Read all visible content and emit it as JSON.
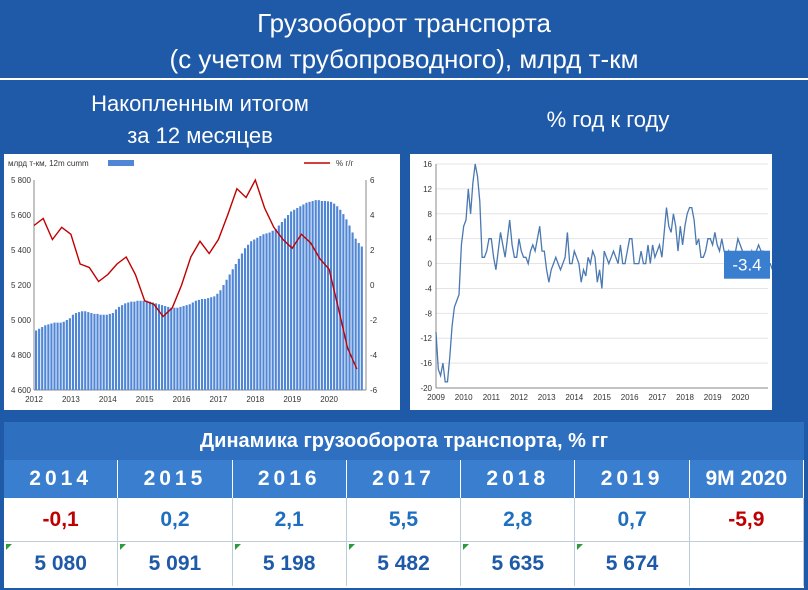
{
  "header": {
    "title_line1": "Грузооборот транспорта",
    "title_line2": "(с учетом трубопроводного), млрд т-км"
  },
  "left_panel": {
    "caption_line1": "Накопленным итогом",
    "caption_line2": "за 12 месяцев"
  },
  "right_panel": {
    "caption": "% год к году"
  },
  "chart_data": [
    {
      "type": "bar",
      "legend_bar": "млрд т-км, 12m cumm",
      "legend_line": "% г/г",
      "legend_placement": "top",
      "y_left_ticks": [
        "4 600",
        "4 800",
        "5 000",
        "5 200",
        "5 400",
        "5 600",
        "5 800"
      ],
      "y_right_ticks": [
        "-6",
        "-4",
        "-2",
        "0",
        "2",
        "4",
        "6"
      ],
      "x_ticks": [
        "2012",
        "2013",
        "2014",
        "2015",
        "2016",
        "2017",
        "2018",
        "2019",
        "2020"
      ],
      "ylim_left": [
        4600,
        5800
      ],
      "ylim_right": [
        -6,
        6
      ],
      "bar_start": 2012.0,
      "bar_step": 0.0833,
      "bar_values": [
        4940,
        4950,
        4960,
        4970,
        4975,
        4980,
        4985,
        4985,
        4985,
        4990,
        5000,
        5010,
        5030,
        5040,
        5045,
        5050,
        5050,
        5045,
        5040,
        5035,
        5035,
        5030,
        5030,
        5030,
        5035,
        5040,
        5060,
        5075,
        5085,
        5095,
        5100,
        5105,
        5105,
        5110,
        5110,
        5110,
        5110,
        5105,
        5100,
        5095,
        5090,
        5085,
        5080,
        5075,
        5070,
        5070,
        5070,
        5075,
        5080,
        5085,
        5090,
        5100,
        5110,
        5115,
        5120,
        5120,
        5125,
        5130,
        5135,
        5150,
        5170,
        5200,
        5230,
        5260,
        5290,
        5320,
        5350,
        5380,
        5410,
        5430,
        5450,
        5460,
        5470,
        5480,
        5490,
        5495,
        5500,
        5510,
        5520,
        5540,
        5560,
        5580,
        5600,
        5620,
        5630,
        5640,
        5650,
        5660,
        5670,
        5675,
        5680,
        5685,
        5685,
        5680,
        5680,
        5678,
        5675,
        5665,
        5650,
        5630,
        5605,
        5575,
        5540,
        5500,
        5465,
        5440,
        5420
      ],
      "line_x": [
        2012.0,
        2012.25,
        2012.5,
        2012.75,
        2013.0,
        2013.25,
        2013.5,
        2013.75,
        2014.0,
        2014.25,
        2014.5,
        2014.75,
        2015.0,
        2015.25,
        2015.5,
        2015.75,
        2016.0,
        2016.25,
        2016.5,
        2016.75,
        2017.0,
        2017.25,
        2017.5,
        2017.75,
        2018.0,
        2018.25,
        2018.5,
        2018.75,
        2019.0,
        2019.25,
        2019.5,
        2019.75,
        2020.0,
        2020.25,
        2020.5,
        2020.75
      ],
      "line_values": [
        3.4,
        3.8,
        2.6,
        3.3,
        2.9,
        1.2,
        1.0,
        0.2,
        0.6,
        1.2,
        1.6,
        0.6,
        -0.9,
        -1.1,
        -1.8,
        -1.3,
        0.0,
        1.6,
        2.5,
        1.8,
        2.6,
        4.0,
        5.5,
        5.0,
        6.0,
        4.4,
        3.3,
        2.6,
        2.1,
        2.9,
        2.4,
        1.5,
        0.9,
        -1.3,
        -3.6,
        -4.8
      ]
    },
    {
      "type": "line",
      "y_ticks": [
        "-20",
        "-16",
        "-12",
        "-8",
        "-4",
        "0",
        "4",
        "8",
        "12",
        "16"
      ],
      "x_ticks": [
        "2009",
        "2010",
        "2011",
        "2012",
        "2013",
        "2014",
        "2015",
        "2016",
        "2017",
        "2018",
        "2019",
        "2020"
      ],
      "ylim": [
        -20,
        16
      ],
      "x_start": 2009.0,
      "x_step": 0.0833,
      "values": [
        -11,
        -17,
        -18,
        -16,
        -19,
        -19,
        -15,
        -10,
        -7,
        -6,
        -5,
        3,
        6,
        7,
        12,
        8,
        13,
        16,
        14,
        10,
        1,
        1,
        2,
        4,
        4,
        1,
        -1,
        2,
        5,
        3,
        1,
        4,
        7,
        3,
        1,
        1,
        4,
        2,
        1,
        1,
        0,
        2,
        3,
        2,
        4,
        6,
        2,
        2,
        -1,
        -3,
        -1,
        0,
        1,
        0,
        -1,
        0,
        1,
        5,
        0,
        0,
        2,
        1,
        0,
        -3,
        -1,
        -2,
        1,
        0,
        2,
        1,
        -3,
        -1,
        -4,
        2,
        1,
        0,
        1,
        2,
        1,
        0,
        3,
        0,
        0,
        2,
        4,
        4,
        0,
        0,
        0,
        2,
        0,
        0,
        3,
        0,
        3,
        1,
        2,
        3,
        1,
        5,
        9,
        6,
        5,
        8,
        6,
        2,
        6,
        3,
        6,
        8,
        9,
        9,
        7,
        3,
        4,
        1,
        1,
        2,
        4,
        4,
        3,
        5,
        3,
        2,
        4,
        2,
        1,
        2,
        0,
        0,
        2,
        4,
        3,
        2,
        1,
        0,
        1,
        2,
        0,
        2,
        3,
        2,
        2,
        1,
        0,
        0,
        -1,
        -1,
        1,
        0,
        -2,
        -1,
        -4,
        -8,
        -9,
        -9,
        -7,
        -5,
        -3.4
      ],
      "last_label": "-3.4"
    }
  ],
  "table": {
    "title": "Динамика грузооборота транспорта, % гг",
    "years": [
      "2014",
      "2015",
      "2016",
      "2017",
      "2018",
      "2019",
      "9M 2020"
    ],
    "growth": [
      "-0,1",
      "0,2",
      "2,1",
      "5,5",
      "2,8",
      "0,7",
      "-5,9"
    ],
    "volumes": [
      "5 080",
      "5 091",
      "5 198",
      "5 482",
      "5 635",
      "5 674",
      ""
    ],
    "colors": {
      "negative": "#c00000",
      "positive": "#1f6fc0",
      "bars": "#4f86d6",
      "line": "#c00000",
      "yoy_line": "#4a78b0"
    }
  }
}
